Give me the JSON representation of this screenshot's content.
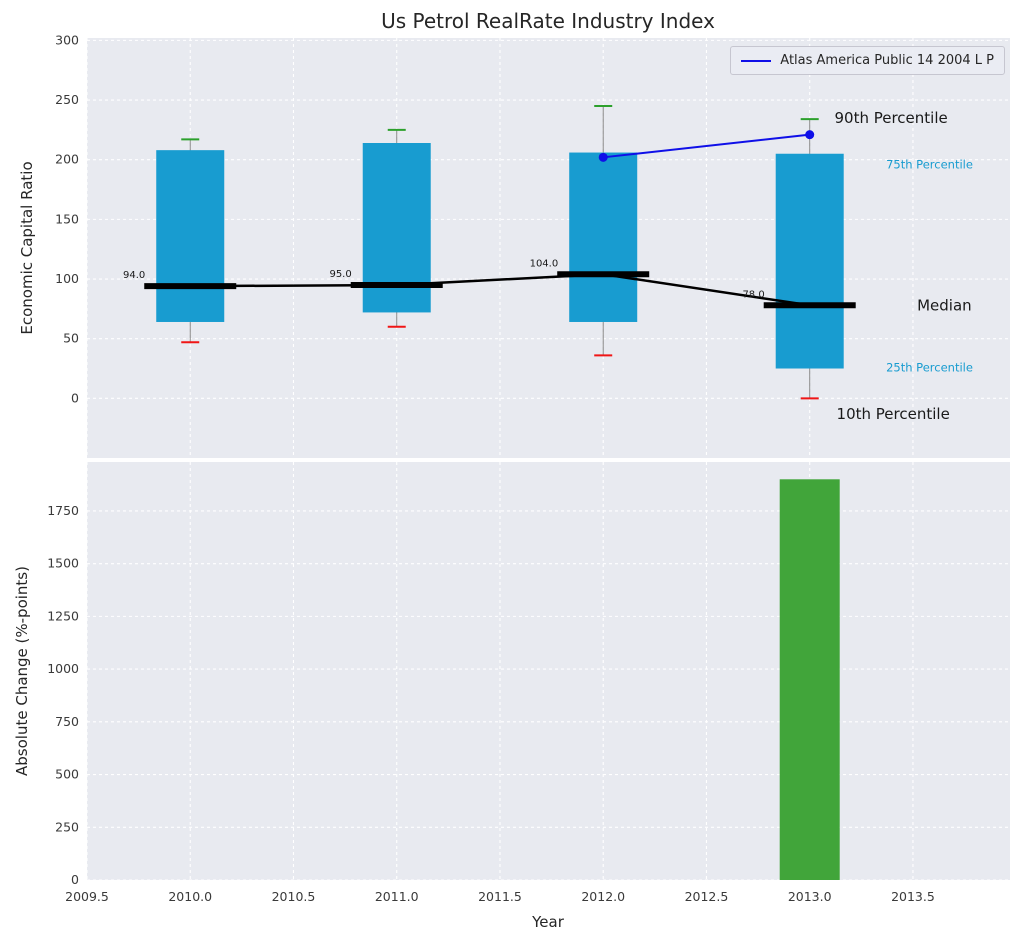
{
  "title": "Us Petrol RealRate Industry Index",
  "legend": {
    "label": "Atlas America Public 14 2004 L P"
  },
  "colors": {
    "box": "#189cd0",
    "bar": "#41a53a",
    "cap_high": "#2ca02c",
    "cap_low": "#f01515",
    "median": "#000000",
    "series": "#0f0fe8",
    "panel_bg": "#e8eaf0",
    "tick_label": "#3a3a3a",
    "grid": "#ffffff",
    "whisker": "#8a8a8a",
    "value_label": "#1a1a1a"
  },
  "chart_data": [
    {
      "type": "box",
      "title": "Us Petrol RealRate Industry Index",
      "ylabel": "Economic Capital Ratio",
      "xlabel": "",
      "grid": true,
      "legend_position": "upper right",
      "xlim": [
        2009.5,
        2013.97
      ],
      "ylim": [
        -50,
        302
      ],
      "xticks": [
        {
          "value": 2009.5,
          "label": "2009.5"
        },
        {
          "value": 2010.0,
          "label": "2010.0"
        },
        {
          "value": 2010.5,
          "label": "2010.5"
        },
        {
          "value": 2011.0,
          "label": "2011.0"
        },
        {
          "value": 2011.5,
          "label": "2011.5"
        },
        {
          "value": 2012.0,
          "label": "2012.0"
        },
        {
          "value": 2012.5,
          "label": "2012.5"
        },
        {
          "value": 2013.0,
          "label": "2013.0"
        },
        {
          "value": 2013.5,
          "label": "2013.5"
        }
      ],
      "yticks": [
        {
          "value": 0,
          "label": "0"
        },
        {
          "value": 50,
          "label": "50"
        },
        {
          "value": 100,
          "label": "100"
        },
        {
          "value": 150,
          "label": "150"
        },
        {
          "value": 200,
          "label": "200"
        },
        {
          "value": 250,
          "label": "250"
        },
        {
          "value": 300,
          "label": "300"
        }
      ],
      "years": [
        2010,
        2011,
        2012,
        2013
      ],
      "p10": [
        47,
        60,
        36,
        0
      ],
      "p25": [
        64,
        72,
        64,
        25
      ],
      "median": [
        94,
        95,
        104,
        78
      ],
      "p75": [
        208,
        214,
        206,
        205
      ],
      "p90": [
        217,
        225,
        245,
        234
      ],
      "median_labels": [
        "94.0",
        "95.0",
        "104.0",
        "78.0"
      ],
      "series": [
        {
          "name": "Atlas America Public 14 2004 L P",
          "x": [
            2012,
            2013
          ],
          "y": [
            202,
            221
          ]
        }
      ],
      "annotations": [
        {
          "text": "90th Percentile",
          "year": 2013.12,
          "value": 235,
          "color": "#1a1a1a",
          "size": 15
        },
        {
          "text": "75th Percentile",
          "year": 2013.37,
          "value": 196,
          "color": "#189cd0",
          "size": 11.5
        },
        {
          "text": "Median",
          "year": 2013.52,
          "value": 78,
          "color": "#1a1a1a",
          "size": 15
        },
        {
          "text": "25th Percentile",
          "year": 2013.37,
          "value": 26,
          "color": "#189cd0",
          "size": 11.5
        },
        {
          "text": "10th Percentile",
          "year": 2013.13,
          "value": -13,
          "color": "#1a1a1a",
          "size": 15
        }
      ]
    },
    {
      "type": "bar",
      "title": "",
      "ylabel": "Absolute Change (%-points)",
      "xlabel": "Year",
      "grid": true,
      "xlim": [
        2009.5,
        2013.97
      ],
      "ylim": [
        0,
        1982
      ],
      "yticks": [
        {
          "value": 0,
          "label": "0"
        },
        {
          "value": 250,
          "label": "250"
        },
        {
          "value": 500,
          "label": "500"
        },
        {
          "value": 750,
          "label": "750"
        },
        {
          "value": 1000,
          "label": "1000"
        },
        {
          "value": 1250,
          "label": "1250"
        },
        {
          "value": 1500,
          "label": "1500"
        },
        {
          "value": 1750,
          "label": "1750"
        }
      ],
      "x": [
        2013
      ],
      "values": [
        1900
      ]
    }
  ]
}
